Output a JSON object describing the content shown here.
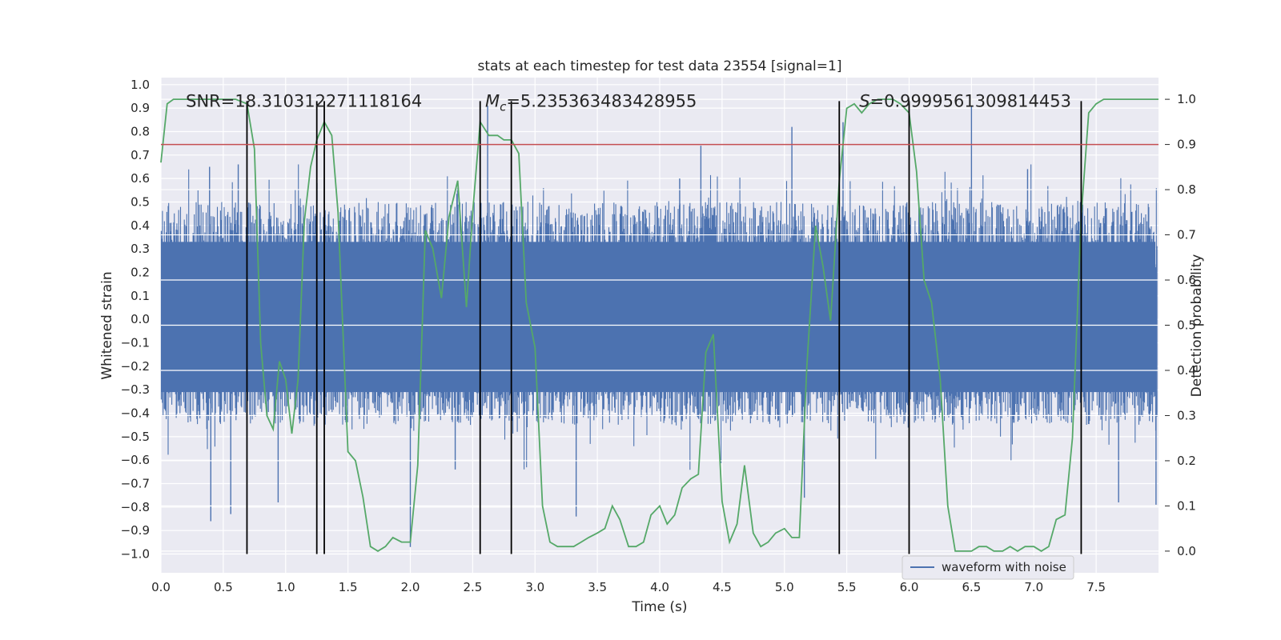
{
  "chart_data": {
    "type": "line",
    "title": "stats at each timestep for test data 23554 [signal=1]",
    "xlabel": "Time (s)",
    "ylabel": "Whitened strain",
    "y2label": "Detection probability",
    "xlim": [
      0.0,
      8.0
    ],
    "ylim": [
      -1.08,
      1.03
    ],
    "y2lim": [
      -0.048,
      1.048
    ],
    "grid": true,
    "x_ticks": [
      "0.0",
      "0.5",
      "1.0",
      "1.5",
      "2.0",
      "2.5",
      "3.0",
      "3.5",
      "4.0",
      "4.5",
      "5.0",
      "5.5",
      "6.0",
      "6.5",
      "7.0",
      "7.5"
    ],
    "y_ticks": [
      "1.0",
      "0.9",
      "0.8",
      "0.7",
      "0.6",
      "0.5",
      "0.4",
      "0.3",
      "0.2",
      "0.1",
      "0.0",
      "−0.1",
      "−0.2",
      "−0.3",
      "−0.4",
      "−0.5",
      "−0.6",
      "−0.7",
      "−0.8",
      "−0.9",
      "−1.0"
    ],
    "y2_ticks": [
      "1.0",
      "0.9",
      "0.8",
      "0.7",
      "0.6",
      "0.5",
      "0.4",
      "0.3",
      "0.2",
      "0.1",
      "0.0"
    ],
    "annotations": [
      {
        "text": "SNR=18.310312271118164",
        "x": 0.2,
        "y": 0.92
      },
      {
        "text": "M",
        "sub": "c",
        "rest": "=5.235363483428955",
        "x": 2.6,
        "y": 0.92
      },
      {
        "text": "S",
        "rest": "=0.9999561309814453",
        "x": 5.6,
        "y": 0.92
      }
    ],
    "legend": {
      "label": "waveform with noise",
      "location": "lower-right"
    },
    "threshold": {
      "value": 0.9,
      "axis": "y2",
      "color": "#c44e52"
    },
    "vlines": [
      0.69,
      1.25,
      1.31,
      2.56,
      2.81,
      5.44,
      6.0,
      7.38
    ],
    "vline_range": [
      -1.0,
      0.93
    ],
    "waveform": {
      "name": "waveform with noise",
      "color": "#4c72b0",
      "n_samples": 1600,
      "envelope_pos": 0.5,
      "envelope_neg": -0.45,
      "spikes": [
        {
          "x": 0.4,
          "y": -0.86
        },
        {
          "x": 0.56,
          "y": -0.83
        },
        {
          "x": 0.94,
          "y": -0.78
        },
        {
          "x": 0.39,
          "y": 0.65
        },
        {
          "x": 0.62,
          "y": 0.66
        },
        {
          "x": 2.62,
          "y": 0.91
        },
        {
          "x": 3.33,
          "y": -0.84
        },
        {
          "x": 4.33,
          "y": 0.74
        },
        {
          "x": 5.06,
          "y": 0.82
        },
        {
          "x": 5.47,
          "y": 0.84
        },
        {
          "x": 6.5,
          "y": 0.91
        },
        {
          "x": 5.16,
          "y": -0.76
        },
        {
          "x": 7.98,
          "y": -0.79
        },
        {
          "x": 7.68,
          "y": -0.78
        },
        {
          "x": 2.0,
          "y": -0.97
        },
        {
          "x": 4.16,
          "y": 0.6
        },
        {
          "x": 6.95,
          "y": 0.64
        },
        {
          "x": 2.36,
          "y": -0.64
        }
      ]
    },
    "series": [
      {
        "name": "detection probability",
        "axis": "y2",
        "color": "#55a868",
        "x": [
          0.0,
          0.05,
          0.1,
          0.15,
          0.2,
          0.3,
          0.4,
          0.5,
          0.6,
          0.69,
          0.75,
          0.8,
          0.85,
          0.9,
          0.95,
          1.0,
          1.05,
          1.1,
          1.15,
          1.2,
          1.25,
          1.31,
          1.37,
          1.42,
          1.5,
          1.56,
          1.62,
          1.68,
          1.74,
          1.8,
          1.86,
          1.93,
          2.0,
          2.06,
          2.12,
          2.18,
          2.25,
          2.31,
          2.38,
          2.45,
          2.5,
          2.56,
          2.63,
          2.7,
          2.75,
          2.81,
          2.87,
          2.93,
          3.0,
          3.06,
          3.12,
          3.18,
          3.25,
          3.31,
          3.37,
          3.43,
          3.5,
          3.56,
          3.62,
          3.68,
          3.75,
          3.81,
          3.87,
          3.93,
          4.0,
          4.06,
          4.12,
          4.18,
          4.25,
          4.31,
          4.37,
          4.43,
          4.5,
          4.56,
          4.62,
          4.68,
          4.75,
          4.81,
          4.87,
          4.93,
          5.0,
          5.06,
          5.12,
          5.18,
          5.25,
          5.31,
          5.37,
          5.44,
          5.5,
          5.56,
          5.62,
          5.68,
          5.75,
          5.81,
          5.87,
          5.93,
          6.0,
          6.06,
          6.12,
          6.18,
          6.25,
          6.31,
          6.37,
          6.43,
          6.5,
          6.56,
          6.62,
          6.68,
          6.75,
          6.81,
          6.87,
          6.93,
          7.0,
          7.06,
          7.12,
          7.18,
          7.25,
          7.31,
          7.38,
          7.44,
          7.5,
          7.56,
          7.62,
          7.68,
          7.75,
          7.81,
          7.87,
          7.93,
          8.0
        ],
        "y": [
          0.86,
          0.99,
          1.0,
          1.0,
          1.0,
          1.0,
          1.0,
          1.0,
          1.0,
          0.99,
          0.89,
          0.46,
          0.3,
          0.27,
          0.42,
          0.38,
          0.26,
          0.38,
          0.73,
          0.85,
          0.91,
          0.95,
          0.92,
          0.75,
          0.22,
          0.2,
          0.12,
          0.01,
          0.0,
          0.01,
          0.03,
          0.02,
          0.02,
          0.19,
          0.71,
          0.67,
          0.56,
          0.74,
          0.82,
          0.54,
          0.75,
          0.95,
          0.92,
          0.92,
          0.91,
          0.91,
          0.88,
          0.55,
          0.45,
          0.1,
          0.02,
          0.01,
          0.01,
          0.01,
          0.02,
          0.03,
          0.04,
          0.05,
          0.1,
          0.07,
          0.01,
          0.01,
          0.02,
          0.08,
          0.1,
          0.06,
          0.08,
          0.14,
          0.16,
          0.17,
          0.44,
          0.48,
          0.11,
          0.02,
          0.06,
          0.19,
          0.04,
          0.01,
          0.02,
          0.04,
          0.05,
          0.03,
          0.03,
          0.41,
          0.72,
          0.63,
          0.51,
          0.82,
          0.98,
          0.99,
          0.97,
          0.99,
          1.0,
          1.0,
          1.0,
          0.99,
          0.97,
          0.84,
          0.6,
          0.55,
          0.38,
          0.1,
          0.0,
          0.0,
          0.0,
          0.01,
          0.01,
          0.0,
          0.0,
          0.01,
          0.0,
          0.01,
          0.01,
          0.0,
          0.01,
          0.07,
          0.08,
          0.25,
          0.74,
          0.97,
          0.99,
          1.0,
          1.0,
          1.0,
          1.0,
          1.0,
          1.0,
          1.0,
          1.0
        ]
      }
    ]
  }
}
